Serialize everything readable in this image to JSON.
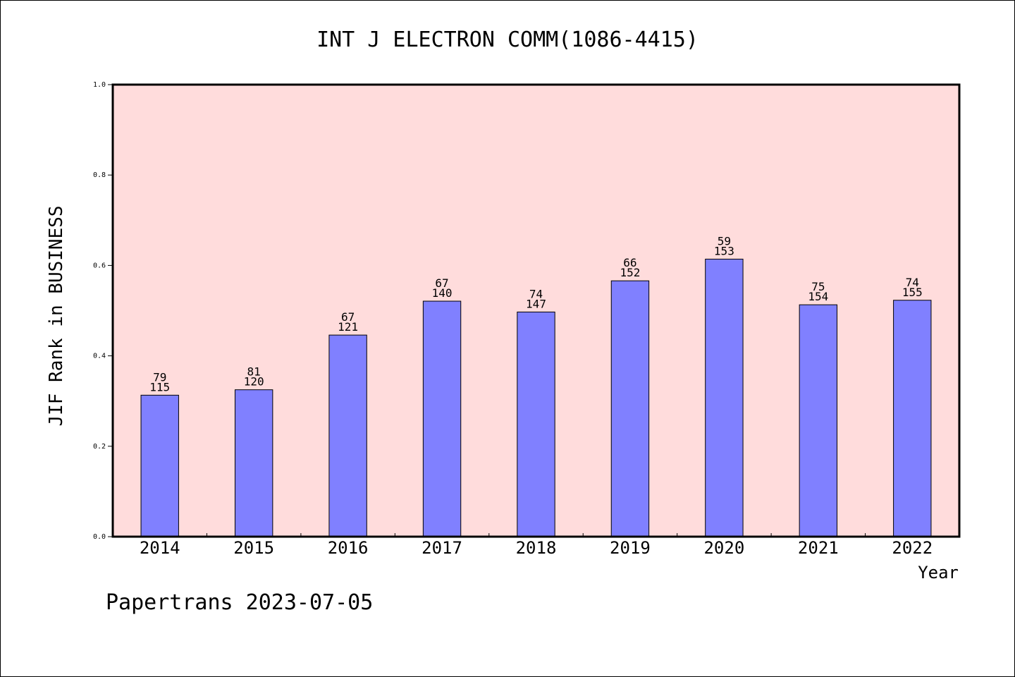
{
  "chart_data": {
    "type": "bar",
    "title": "INT J ELECTRON COMM(1086-4415)",
    "xlabel": "Year",
    "ylabel": "JIF Rank in BUSINESS",
    "ylim": [
      0,
      1.0
    ],
    "yticks": [
      "0.0",
      "0.2",
      "0.4",
      "0.6",
      "0.8",
      "1.0"
    ],
    "categories": [
      "2014",
      "2015",
      "2016",
      "2017",
      "2018",
      "2019",
      "2020",
      "2021",
      "2022"
    ],
    "series": [
      {
        "values": [
          0.313,
          0.325,
          0.446,
          0.521,
          0.497,
          0.566,
          0.614,
          0.513,
          0.523
        ],
        "rank": [
          "79",
          "81",
          "67",
          "67",
          "74",
          "66",
          "59",
          "75",
          "74"
        ],
        "total": [
          "115",
          "120",
          "121",
          "140",
          "147",
          "152",
          "153",
          "154",
          "155"
        ]
      }
    ],
    "grid": false,
    "colors": {
      "bar": "#8080ff",
      "plot_background": "#ffdcdc",
      "axis": "#000000"
    }
  },
  "footer": {
    "text": "Papertrans 2023-07-05"
  }
}
